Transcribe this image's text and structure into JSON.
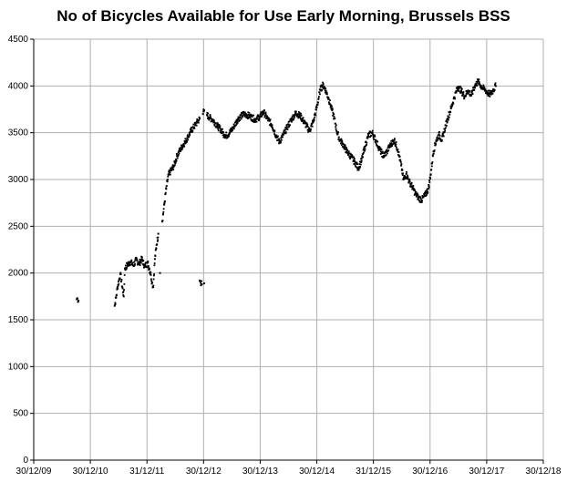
{
  "chart_data": {
    "type": "scatter",
    "title": "No of Bicycles Available for Use Early Morning, Brussels BSS",
    "xlabel": "",
    "ylabel": "",
    "x_tick_labels": [
      "30/12/09",
      "30/12/10",
      "31/12/11",
      "30/12/12",
      "30/12/13",
      "30/12/14",
      "31/12/15",
      "30/12/16",
      "30/12/17",
      "30/12/18"
    ],
    "y_tick_labels": [
      "0",
      "500",
      "1000",
      "1500",
      "2000",
      "2500",
      "3000",
      "3500",
      "4000",
      "4500"
    ],
    "xlim": [
      2009.99,
      2018.99
    ],
    "ylim": [
      0,
      4500
    ],
    "grid": true,
    "legend": "none",
    "marker_color": "#000000",
    "series": [
      {
        "points": [
          [
            2010.75,
            1720
          ],
          [
            2010.78,
            1705
          ],
          [
            2010.76,
            1730
          ],
          [
            2011.42,
            1650
          ],
          [
            2011.45,
            1760
          ],
          [
            2011.47,
            1850
          ],
          [
            2011.5,
            1930
          ],
          [
            2011.52,
            1990
          ],
          [
            2011.58,
            1750
          ],
          [
            2011.6,
            2050
          ],
          [
            2011.65,
            2090
          ],
          [
            2011.7,
            2120
          ],
          [
            2011.75,
            2080
          ],
          [
            2011.8,
            2140
          ],
          [
            2011.85,
            2100
          ],
          [
            2011.9,
            2150
          ],
          [
            2011.95,
            2070
          ],
          [
            2012.0,
            2110
          ],
          [
            2012.03,
            2050
          ],
          [
            2012.06,
            1980
          ],
          [
            2012.08,
            1900
          ],
          [
            2012.1,
            1850
          ],
          [
            2012.13,
            2150
          ],
          [
            2012.16,
            2300
          ],
          [
            2012.19,
            2420
          ],
          [
            2012.22,
            2000
          ],
          [
            2012.26,
            2550
          ],
          [
            2012.3,
            2750
          ],
          [
            2012.33,
            2900
          ],
          [
            2012.37,
            3050
          ],
          [
            2012.42,
            3100
          ],
          [
            2012.47,
            3150
          ],
          [
            2012.52,
            3250
          ],
          [
            2012.58,
            3320
          ],
          [
            2012.64,
            3380
          ],
          [
            2012.7,
            3440
          ],
          [
            2012.77,
            3520
          ],
          [
            2012.84,
            3580
          ],
          [
            2012.92,
            3650
          ],
          [
            2012.98,
            3700
          ],
          [
            2013.0,
            3740
          ],
          [
            2013.05,
            3690
          ],
          [
            2013.1,
            3660
          ],
          [
            2013.15,
            3640
          ],
          [
            2013.2,
            3600
          ],
          [
            2013.25,
            3560
          ],
          [
            2013.3,
            3530
          ],
          [
            2013.35,
            3480
          ],
          [
            2013.4,
            3470
          ],
          [
            2013.45,
            3500
          ],
          [
            2013.52,
            3560
          ],
          [
            2013.6,
            3650
          ],
          [
            2013.7,
            3700
          ],
          [
            2013.8,
            3680
          ],
          [
            2013.9,
            3640
          ],
          [
            2013.98,
            3670
          ],
          [
            2014.05,
            3720
          ],
          [
            2014.12,
            3650
          ],
          [
            2014.2,
            3580
          ],
          [
            2014.27,
            3470
          ],
          [
            2014.33,
            3400
          ],
          [
            2014.4,
            3480
          ],
          [
            2014.47,
            3560
          ],
          [
            2014.55,
            3650
          ],
          [
            2014.62,
            3710
          ],
          [
            2014.7,
            3680
          ],
          [
            2014.78,
            3600
          ],
          [
            2014.86,
            3520
          ],
          [
            2014.93,
            3620
          ],
          [
            2015.0,
            3800
          ],
          [
            2015.05,
            3960
          ],
          [
            2015.1,
            4010
          ],
          [
            2015.15,
            3950
          ],
          [
            2015.2,
            3860
          ],
          [
            2015.25,
            3760
          ],
          [
            2015.3,
            3650
          ],
          [
            2015.35,
            3500
          ],
          [
            2015.4,
            3420
          ],
          [
            2015.45,
            3380
          ],
          [
            2015.52,
            3300
          ],
          [
            2015.6,
            3240
          ],
          [
            2015.67,
            3180
          ],
          [
            2015.72,
            3120
          ],
          [
            2015.78,
            3200
          ],
          [
            2015.84,
            3350
          ],
          [
            2015.9,
            3470
          ],
          [
            2015.97,
            3500
          ],
          [
            2016.03,
            3420
          ],
          [
            2016.1,
            3320
          ],
          [
            2016.17,
            3250
          ],
          [
            2016.23,
            3300
          ],
          [
            2016.3,
            3380
          ],
          [
            2016.36,
            3420
          ],
          [
            2016.42,
            3320
          ],
          [
            2016.48,
            3150
          ],
          [
            2016.52,
            3000
          ],
          [
            2016.57,
            3060
          ],
          [
            2016.62,
            2980
          ],
          [
            2016.68,
            2920
          ],
          [
            2016.73,
            2850
          ],
          [
            2016.78,
            2810
          ],
          [
            2016.84,
            2780
          ],
          [
            2016.9,
            2830
          ],
          [
            2016.96,
            2900
          ],
          [
            2017.0,
            3050
          ],
          [
            2017.05,
            3300
          ],
          [
            2017.1,
            3420
          ],
          [
            2017.15,
            3480
          ],
          [
            2017.2,
            3420
          ],
          [
            2017.25,
            3540
          ],
          [
            2017.3,
            3650
          ],
          [
            2017.36,
            3760
          ],
          [
            2017.42,
            3880
          ],
          [
            2017.48,
            3990
          ],
          [
            2017.54,
            3950
          ],
          [
            2017.6,
            3890
          ],
          [
            2017.66,
            3950
          ],
          [
            2017.72,
            3900
          ],
          [
            2017.78,
            4000
          ],
          [
            2017.84,
            4050
          ],
          [
            2017.9,
            3990
          ],
          [
            2017.96,
            3960
          ],
          [
            2018.0,
            3930
          ],
          [
            2018.05,
            3910
          ],
          [
            2018.1,
            3950
          ],
          [
            2018.15,
            4000
          ],
          [
            2012.92,
            1920
          ],
          [
            2012.96,
            1880
          ],
          [
            2013.0,
            1890
          ]
        ]
      }
    ]
  }
}
